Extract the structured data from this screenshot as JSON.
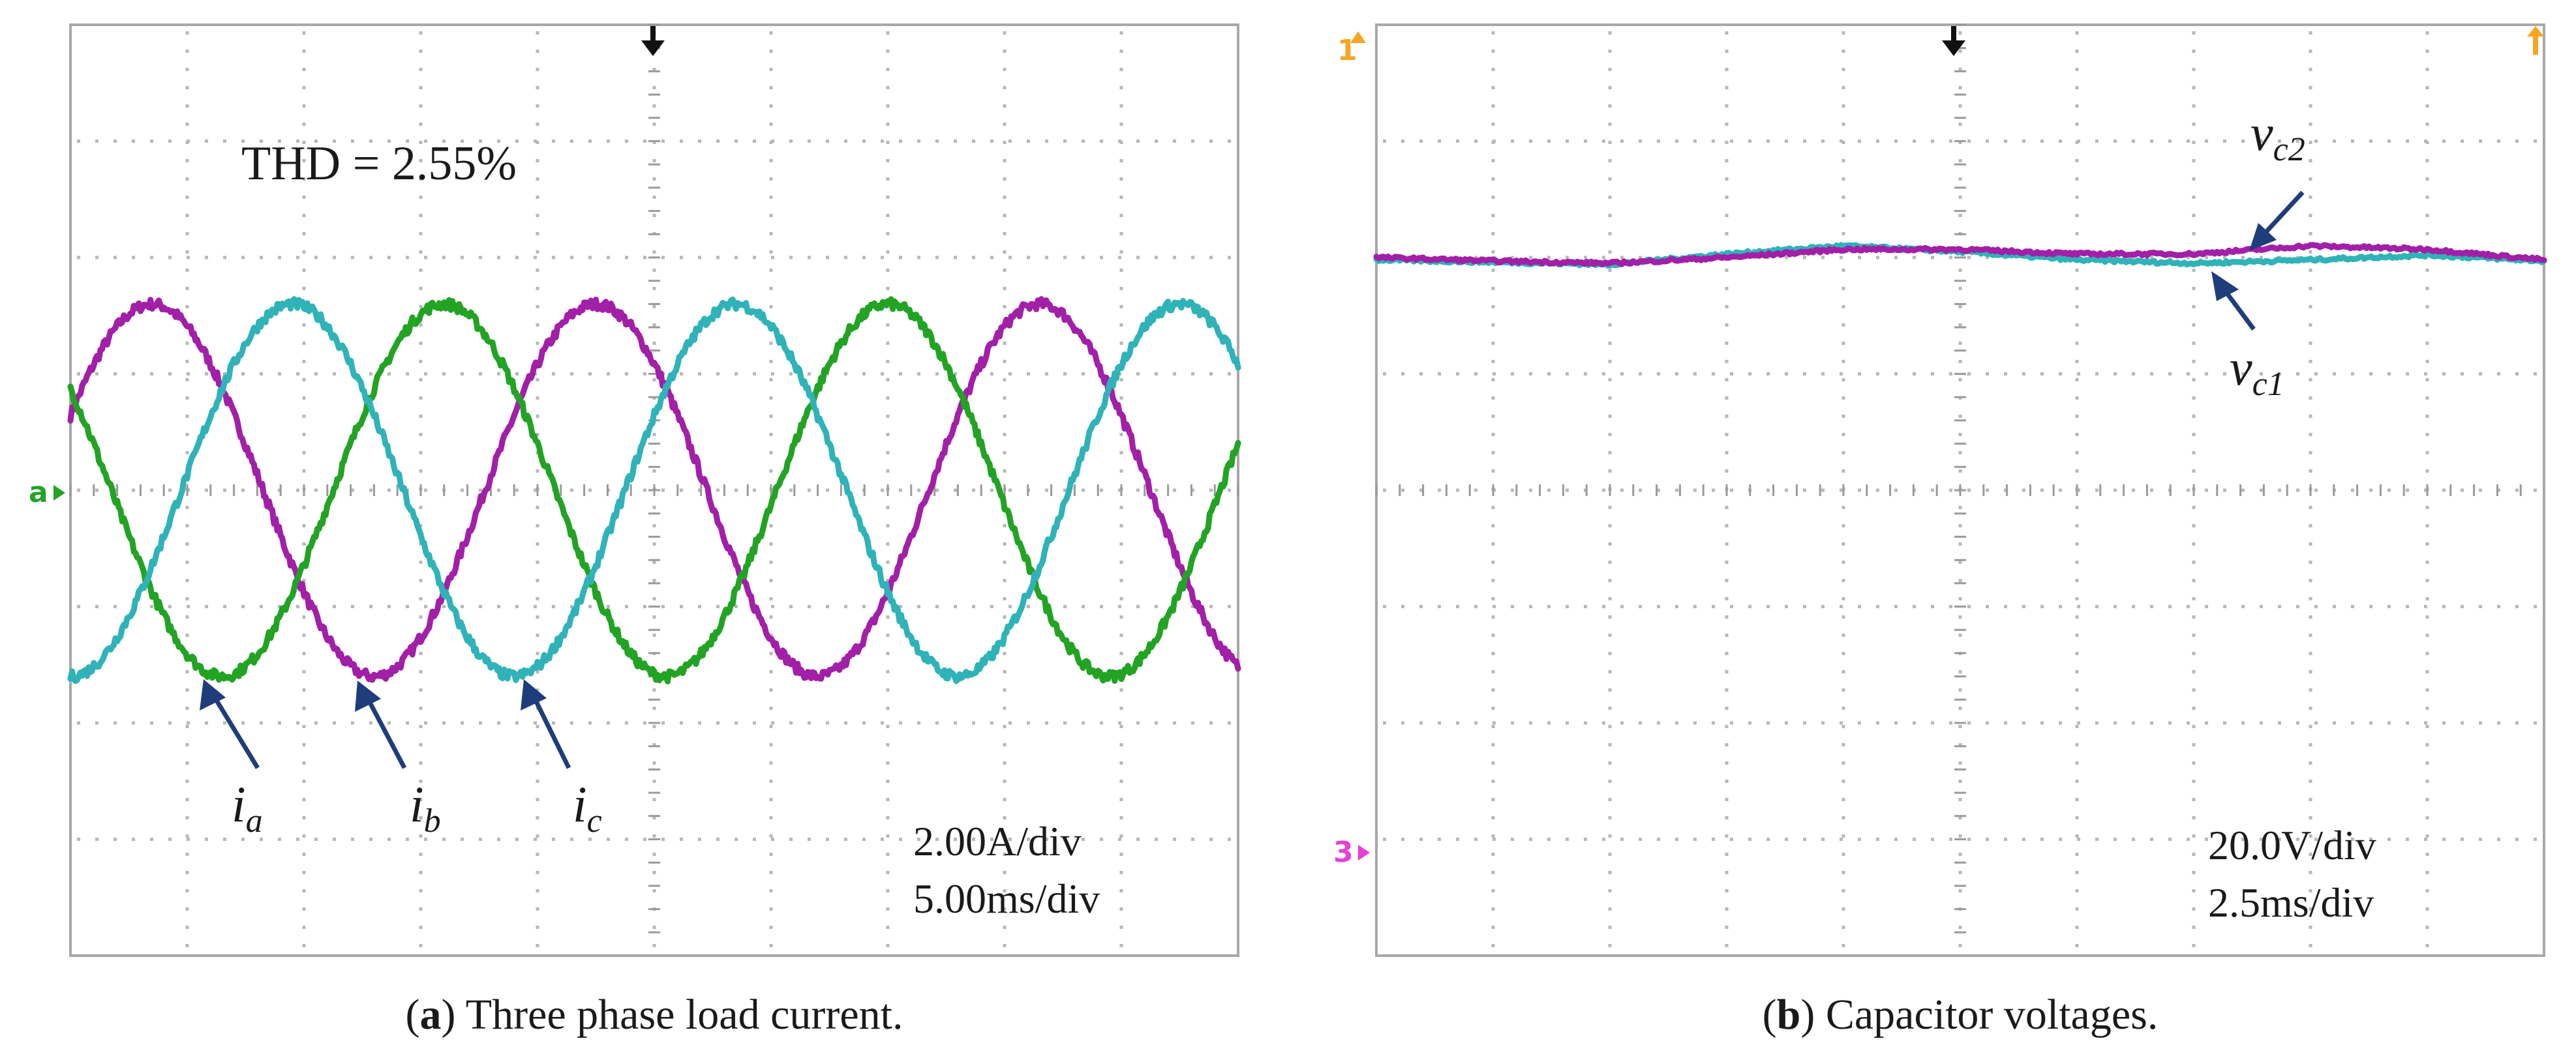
{
  "colors": {
    "magenta": "#a21fa8",
    "cyan": "#2fb3b8",
    "green": "#22a324",
    "arrow": "#1f3d7a",
    "ch1_marker": "#f5a623",
    "ch3_marker": "#e83fd6",
    "ch_green_marker": "#22a324"
  },
  "panels": [
    {
      "caption_label": "a",
      "caption_text": " Three phase load current.",
      "thd": "THD = 2.55%",
      "scale_v": "2.00A/div",
      "scale_t": "5.00ms/div",
      "labels": [
        {
          "base": "i",
          "sub": "a"
        },
        {
          "base": "i",
          "sub": "b"
        },
        {
          "base": "i",
          "sub": "c"
        }
      ],
      "left_marker": "a"
    },
    {
      "caption_label": "b",
      "caption_text": " Capacitor voltages.",
      "scale_v": "20.0V/div",
      "scale_t": "2.5ms/div",
      "labels": [
        {
          "base": "v",
          "sub": "c2"
        },
        {
          "base": "v",
          "sub": "c1"
        }
      ],
      "left_marker": "3",
      "top_marker": "1"
    }
  ],
  "chart_data": [
    {
      "type": "line",
      "title": "Three phase load current",
      "xlabel": "5.00ms/div",
      "ylabel": "2.00A/div",
      "x_divisions": 10,
      "y_divisions": 8,
      "xlim": [
        0,
        10
      ],
      "ylim": [
        -4,
        4
      ],
      "annotation": "THD = 2.55%",
      "series": [
        {
          "name": "ia",
          "color": "magenta",
          "amplitude_div": 1.6,
          "period_div": 3.8,
          "phase_peak_div": 0.7
        },
        {
          "name": "ib",
          "color": "green",
          "amplitude_div": 1.6,
          "period_div": 3.8,
          "phase_peak_div": 3.2
        },
        {
          "name": "ic",
          "color": "cyan",
          "amplitude_div": 1.6,
          "period_div": 3.8,
          "phase_peak_div": 1.9
        }
      ]
    },
    {
      "type": "line",
      "title": "Capacitor voltages",
      "xlabel": "2.5ms/div",
      "ylabel": "20.0V/div",
      "x_divisions": 10,
      "y_divisions": 8,
      "xlim": [
        0,
        10
      ],
      "ylim": [
        -4,
        4
      ],
      "series": [
        {
          "name": "vc2",
          "color": "magenta",
          "x": [
            0,
            1,
            2,
            3,
            4,
            5,
            6,
            7,
            8,
            9,
            10
          ],
          "y": [
            2.0,
            1.97,
            1.95,
            2.0,
            2.07,
            2.07,
            2.03,
            2.03,
            2.1,
            2.07,
            1.98
          ]
        },
        {
          "name": "vc1",
          "color": "cyan",
          "x": [
            0,
            1,
            2,
            3,
            4,
            5,
            6,
            7,
            8,
            9,
            10
          ],
          "y": [
            1.98,
            1.96,
            1.94,
            2.03,
            2.1,
            2.05,
            1.98,
            1.95,
            1.98,
            2.02,
            1.97
          ]
        }
      ]
    }
  ]
}
